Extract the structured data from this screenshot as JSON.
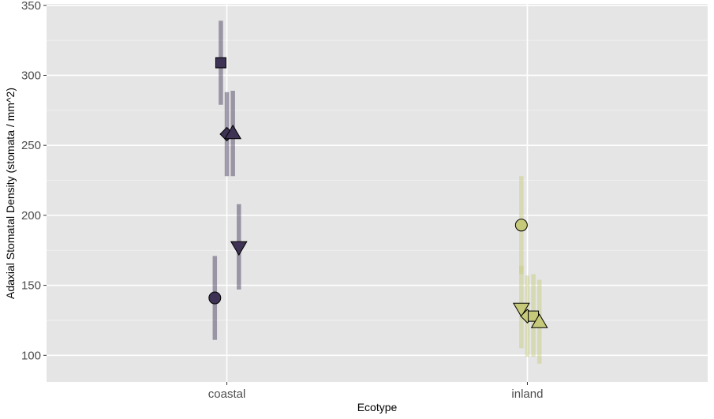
{
  "chart_data": {
    "type": "scatter",
    "title": "",
    "xlabel": "Ecotype",
    "ylabel": "Adaxial Stomatal Density (stomata / mm^2)",
    "categories": [
      "coastal",
      "inland"
    ],
    "ylim": [
      81,
      351
    ],
    "yticks": [
      100,
      150,
      200,
      250,
      300,
      350
    ],
    "grid": true,
    "panel_background": "#e5e5e5",
    "series_colors": {
      "coastal": "#3f3355",
      "inland": "#c6c97a"
    },
    "points": [
      {
        "category": "coastal",
        "offset": -0.04,
        "y": 141,
        "ymin": 111,
        "ymax": 171,
        "shape": "circle"
      },
      {
        "category": "coastal",
        "offset": -0.02,
        "y": 309,
        "ymin": 279,
        "ymax": 339,
        "shape": "square"
      },
      {
        "category": "coastal",
        "offset": 0.0,
        "y": 258,
        "ymin": 228,
        "ymax": 288,
        "shape": "diamond"
      },
      {
        "category": "coastal",
        "offset": 0.02,
        "y": 259,
        "ymin": 228,
        "ymax": 289,
        "shape": "triangle-up"
      },
      {
        "category": "coastal",
        "offset": 0.04,
        "y": 177,
        "ymin": 147,
        "ymax": 208,
        "shape": "triangle-down"
      },
      {
        "category": "inland",
        "offset": -0.02,
        "y": 133,
        "ymin": 105,
        "ymax": 164,
        "shape": "triangle-down"
      },
      {
        "category": "inland",
        "offset": -0.02,
        "y": 193,
        "ymin": 158,
        "ymax": 228,
        "shape": "circle"
      },
      {
        "category": "inland",
        "offset": 0.0,
        "y": 128,
        "ymin": 99,
        "ymax": 157,
        "shape": "diamond"
      },
      {
        "category": "inland",
        "offset": 0.02,
        "y": 128,
        "ymin": 99,
        "ymax": 158,
        "shape": "square"
      },
      {
        "category": "inland",
        "offset": 0.04,
        "y": 124,
        "ymin": 94,
        "ymax": 154,
        "shape": "triangle-up"
      }
    ]
  }
}
